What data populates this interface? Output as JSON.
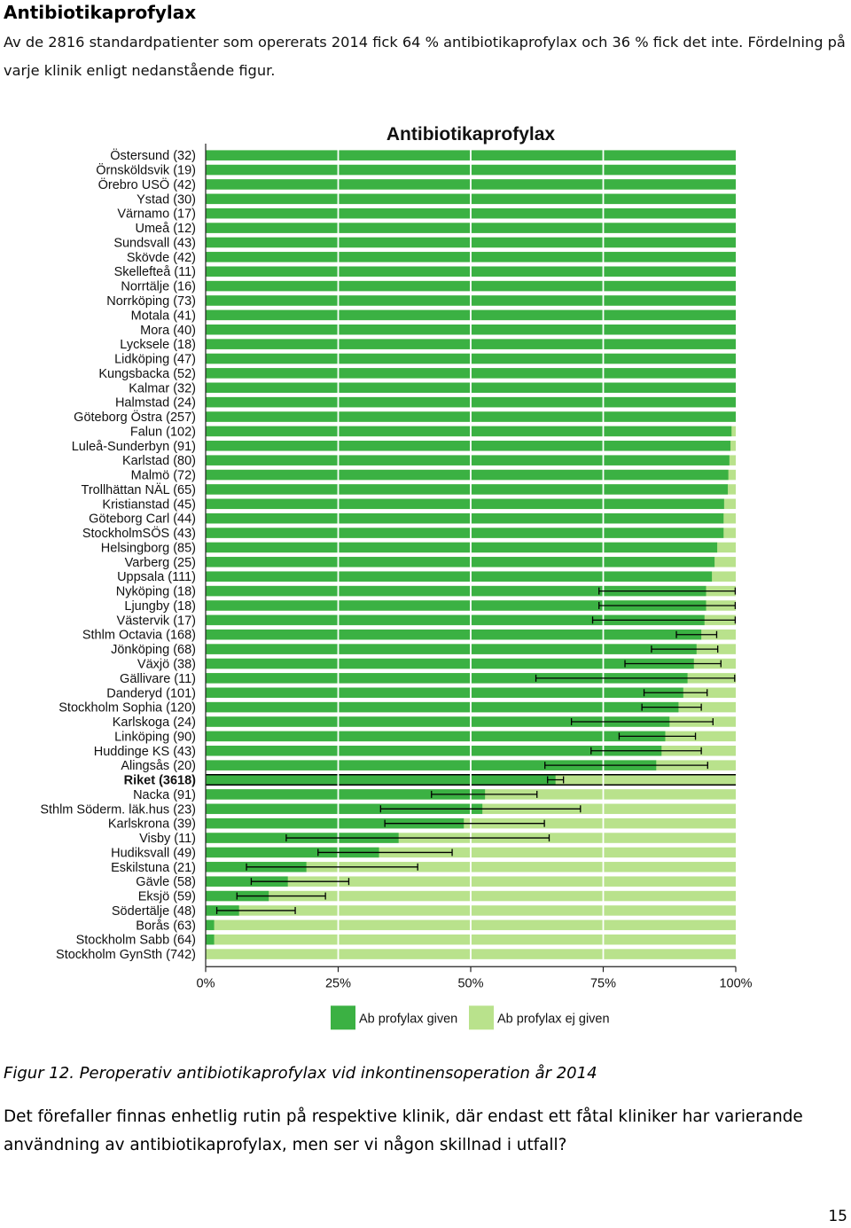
{
  "document": {
    "heading": "Antibiotikaprofylax",
    "intro": "Av de 2816 standardpatienter som opererats 2014 fick 64 % antibiotikaprofylax och 36 % fick det inte. Fördelning på varje klinik enligt nedanstående figur.",
    "caption": "Figur 12. Peroperativ antibiotikaprofylax vid inkontinensoperation år 2014",
    "body_text": "Det förefaller finnas enhetlig rutin på respektive klinik, där endast ett fåtal kliniker har varierande användning av antibiotikaprofylax, men ser vi någon skillnad i utfall?",
    "page_number": "15"
  },
  "chart_data": {
    "type": "bar",
    "orientation": "horizontal",
    "stacked": "100%",
    "title": "Antibiotikaprofylax",
    "xlabel": "",
    "ylabel": "",
    "xlim": [
      0,
      100
    ],
    "x_ticks": [
      "0%",
      "25%",
      "50%",
      "75%",
      "100%"
    ],
    "grid": true,
    "legend_position": "bottom",
    "colors": {
      "given": "#3bb143",
      "not_given": "#b9e28c",
      "error_bar": "#000000",
      "highlight_line": "#000000"
    },
    "series": [
      {
        "name": "Ab profylax given"
      },
      {
        "name": "Ab profylax ej given"
      }
    ],
    "highlight_category": "Riket (3618)",
    "categories": [
      "Östersund (32)",
      "Örnsköldsvik (19)",
      "Örebro USÖ (42)",
      "Ystad (30)",
      "Värnamo (17)",
      "Umeå (12)",
      "Sundsvall (43)",
      "Skövde (42)",
      "Skellefteå (11)",
      "Norrtälje (16)",
      "Norrköping (73)",
      "Motala (41)",
      "Mora (40)",
      "Lycksele (18)",
      "Lidköping (47)",
      "Kungsbacka (52)",
      "Kalmar (32)",
      "Halmstad (24)",
      "Göteborg Östra (257)",
      "Falun (102)",
      "Luleå-Sunderbyn (91)",
      "Karlstad (80)",
      "Malmö (72)",
      "Trollhättan NÄL (65)",
      "Kristianstad (45)",
      "Göteborg Carl (44)",
      "StockholmSÖS (43)",
      "Helsingborg (85)",
      "Varberg (25)",
      "Uppsala (111)",
      "Nyköping (18)",
      "Ljungby (18)",
      "Västervik (17)",
      "Sthlm Octavia (168)",
      "Jönköping (68)",
      "Växjö (38)",
      "Gällivare (11)",
      "Danderyd (101)",
      "Stockholm Sophia (120)",
      "Karlskoga (24)",
      "Linköping (90)",
      "Huddinge KS (43)",
      "Alingsås (20)",
      "Riket (3618)",
      "Nacka (91)",
      "Sthlm Söderm. läk.hus (23)",
      "Karlskrona (39)",
      "Visby (11)",
      "Hudiksvall (49)",
      "Eskilstuna (21)",
      "Gävle (58)",
      "Eksjö (59)",
      "Södertälje (48)",
      "Borås (63)",
      "Stockholm Sabb (64)",
      "Stockholm GynSth (742)"
    ],
    "values": [
      100,
      100,
      100,
      100,
      100,
      100,
      100,
      100,
      100,
      100,
      100,
      100,
      100,
      100,
      100,
      100,
      100,
      100,
      100,
      99.2,
      99.0,
      98.8,
      98.6,
      98.5,
      97.8,
      97.7,
      97.7,
      96.5,
      96.0,
      95.5,
      94.4,
      94.4,
      94.1,
      93.5,
      92.6,
      92.1,
      90.9,
      90.1,
      89.2,
      87.5,
      86.7,
      86.0,
      85.0,
      66.0,
      52.7,
      52.2,
      48.7,
      36.4,
      32.7,
      19.0,
      15.5,
      11.9,
      6.3,
      1.6,
      1.6,
      0.1
    ],
    "ci": [
      null,
      null,
      null,
      null,
      null,
      null,
      null,
      null,
      null,
      null,
      null,
      null,
      null,
      null,
      null,
      null,
      null,
      null,
      null,
      null,
      null,
      null,
      null,
      null,
      null,
      null,
      null,
      null,
      null,
      null,
      [
        74.2,
        99.9
      ],
      [
        74.2,
        99.9
      ],
      [
        73.0,
        99.9
      ],
      [
        88.8,
        96.4
      ],
      [
        84.1,
        96.6
      ],
      [
        79.1,
        97.2
      ],
      [
        62.3,
        99.8
      ],
      [
        82.7,
        94.6
      ],
      [
        82.3,
        93.5
      ],
      [
        69.0,
        95.7
      ],
      [
        78.0,
        92.4
      ],
      [
        72.7,
        93.5
      ],
      [
        64.0,
        94.7
      ],
      [
        64.5,
        67.5
      ],
      [
        42.6,
        62.5
      ],
      [
        33.0,
        70.7
      ],
      [
        33.8,
        63.9
      ],
      [
        15.2,
        64.8
      ],
      [
        21.2,
        46.5
      ],
      [
        7.7,
        40.0
      ],
      [
        8.6,
        27.0
      ],
      [
        5.9,
        22.6
      ],
      [
        2.1,
        16.9
      ],
      null,
      null,
      null
    ]
  }
}
